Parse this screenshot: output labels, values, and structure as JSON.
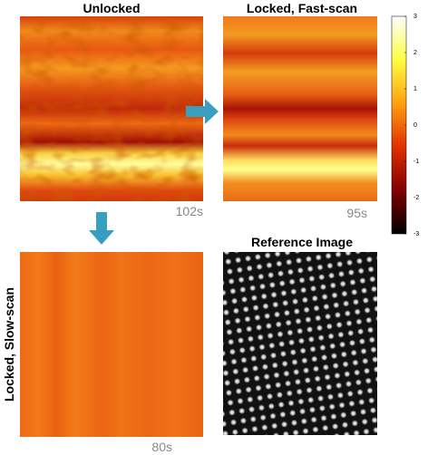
{
  "panels": [
    {
      "title": "Unlocked",
      "time": "102s"
    },
    {
      "title": "Locked, Fast-scan",
      "time": "95s"
    },
    {
      "title": "Locked, Slow-scan",
      "time": "80s"
    },
    {
      "title": "Reference Image"
    }
  ],
  "colorbar": {
    "lim": [
      -3,
      3
    ],
    "ticks": [
      3,
      2,
      1,
      0,
      -1,
      -2,
      -3
    ]
  }
}
